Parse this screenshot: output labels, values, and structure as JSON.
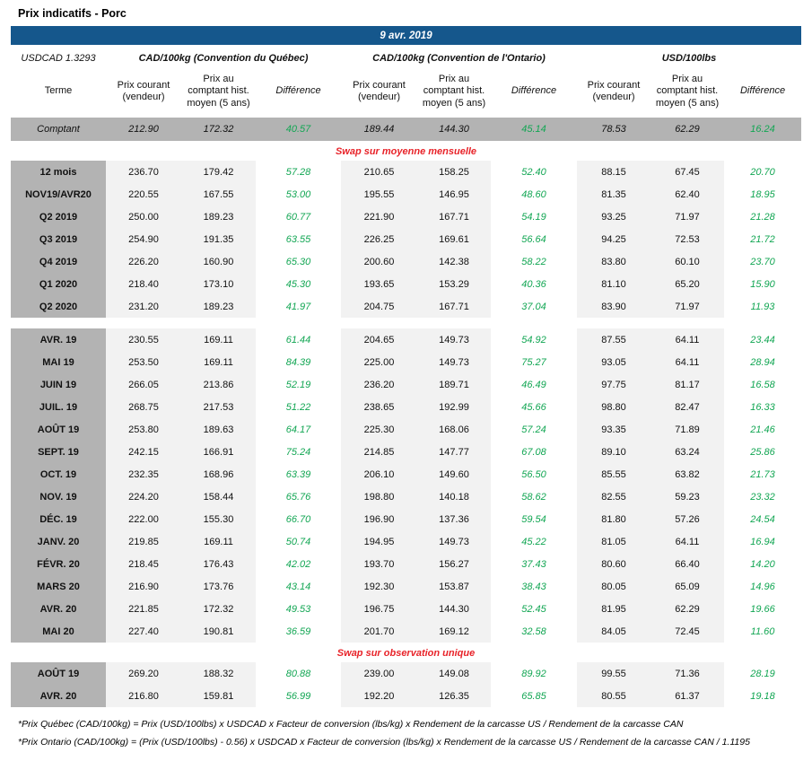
{
  "page_title": "Prix indicatifs - Porc",
  "date_banner": "9 avr. 2019",
  "colors": {
    "banner_blue": "#15578c",
    "row_gray": "#b3b3b3",
    "cell_light_gray": "#f2f2f2",
    "difference_green": "#12a653",
    "swap_header_red": "#e82329"
  },
  "table": {
    "usdcad_label": "USDCAD 1.3293",
    "groups": [
      {
        "label": "CAD/100kg (Convention du Québec)"
      },
      {
        "label": "CAD/100kg (Convention de l'Ontario)"
      },
      {
        "label": "USD/100lbs"
      }
    ],
    "col_headers": {
      "terme": "Terme",
      "prix_courant": "Prix courant (vendeur)",
      "prix_comptant": "Prix au comptant hist. moyen (5 ans)",
      "difference": "Différence"
    },
    "comptant_row": {
      "terme": "Comptant",
      "values": [
        "212.90",
        "172.32",
        "40.57",
        "189.44",
        "144.30",
        "45.14",
        "78.53",
        "62.29",
        "16.24"
      ]
    },
    "sections": [
      {
        "header": "Swap sur moyenne mensuelle",
        "blocks": [
          {
            "rows": [
              {
                "terme": "12 mois",
                "values": [
                  "236.70",
                  "179.42",
                  "57.28",
                  "210.65",
                  "158.25",
                  "52.40",
                  "88.15",
                  "67.45",
                  "20.70"
                ]
              },
              {
                "terme": "NOV19/AVR20",
                "values": [
                  "220.55",
                  "167.55",
                  "53.00",
                  "195.55",
                  "146.95",
                  "48.60",
                  "81.35",
                  "62.40",
                  "18.95"
                ]
              },
              {
                "terme": "Q2 2019",
                "values": [
                  "250.00",
                  "189.23",
                  "60.77",
                  "221.90",
                  "167.71",
                  "54.19",
                  "93.25",
                  "71.97",
                  "21.28"
                ]
              },
              {
                "terme": "Q3 2019",
                "values": [
                  "254.90",
                  "191.35",
                  "63.55",
                  "226.25",
                  "169.61",
                  "56.64",
                  "94.25",
                  "72.53",
                  "21.72"
                ]
              },
              {
                "terme": "Q4 2019",
                "values": [
                  "226.20",
                  "160.90",
                  "65.30",
                  "200.60",
                  "142.38",
                  "58.22",
                  "83.80",
                  "60.10",
                  "23.70"
                ]
              },
              {
                "terme": "Q1 2020",
                "values": [
                  "218.40",
                  "173.10",
                  "45.30",
                  "193.65",
                  "153.29",
                  "40.36",
                  "81.10",
                  "65.20",
                  "15.90"
                ]
              },
              {
                "terme": "Q2 2020",
                "values": [
                  "231.20",
                  "189.23",
                  "41.97",
                  "204.75",
                  "167.71",
                  "37.04",
                  "83.90",
                  "71.97",
                  "11.93"
                ]
              }
            ]
          },
          {
            "rows": [
              {
                "terme": "AVR. 19",
                "values": [
                  "230.55",
                  "169.11",
                  "61.44",
                  "204.65",
                  "149.73",
                  "54.92",
                  "87.55",
                  "64.11",
                  "23.44"
                ]
              },
              {
                "terme": "MAI 19",
                "values": [
                  "253.50",
                  "169.11",
                  "84.39",
                  "225.00",
                  "149.73",
                  "75.27",
                  "93.05",
                  "64.11",
                  "28.94"
                ]
              },
              {
                "terme": "JUIN 19",
                "values": [
                  "266.05",
                  "213.86",
                  "52.19",
                  "236.20",
                  "189.71",
                  "46.49",
                  "97.75",
                  "81.17",
                  "16.58"
                ]
              },
              {
                "terme": "JUIL. 19",
                "values": [
                  "268.75",
                  "217.53",
                  "51.22",
                  "238.65",
                  "192.99",
                  "45.66",
                  "98.80",
                  "82.47",
                  "16.33"
                ]
              },
              {
                "terme": "AOÛT 19",
                "values": [
                  "253.80",
                  "189.63",
                  "64.17",
                  "225.30",
                  "168.06",
                  "57.24",
                  "93.35",
                  "71.89",
                  "21.46"
                ]
              },
              {
                "terme": "SEPT. 19",
                "values": [
                  "242.15",
                  "166.91",
                  "75.24",
                  "214.85",
                  "147.77",
                  "67.08",
                  "89.10",
                  "63.24",
                  "25.86"
                ]
              },
              {
                "terme": "OCT. 19",
                "values": [
                  "232.35",
                  "168.96",
                  "63.39",
                  "206.10",
                  "149.60",
                  "56.50",
                  "85.55",
                  "63.82",
                  "21.73"
                ]
              },
              {
                "terme": "NOV. 19",
                "values": [
                  "224.20",
                  "158.44",
                  "65.76",
                  "198.80",
                  "140.18",
                  "58.62",
                  "82.55",
                  "59.23",
                  "23.32"
                ]
              },
              {
                "terme": "DÉC. 19",
                "values": [
                  "222.00",
                  "155.30",
                  "66.70",
                  "196.90",
                  "137.36",
                  "59.54",
                  "81.80",
                  "57.26",
                  "24.54"
                ]
              },
              {
                "terme": "JANV. 20",
                "values": [
                  "219.85",
                  "169.11",
                  "50.74",
                  "194.95",
                  "149.73",
                  "45.22",
                  "81.05",
                  "64.11",
                  "16.94"
                ]
              },
              {
                "terme": "FÉVR. 20",
                "values": [
                  "218.45",
                  "176.43",
                  "42.02",
                  "193.70",
                  "156.27",
                  "37.43",
                  "80.60",
                  "66.40",
                  "14.20"
                ]
              },
              {
                "terme": "MARS 20",
                "values": [
                  "216.90",
                  "173.76",
                  "43.14",
                  "192.30",
                  "153.87",
                  "38.43",
                  "80.05",
                  "65.09",
                  "14.96"
                ]
              },
              {
                "terme": "AVR. 20",
                "values": [
                  "221.85",
                  "172.32",
                  "49.53",
                  "196.75",
                  "144.30",
                  "52.45",
                  "81.95",
                  "62.29",
                  "19.66"
                ]
              },
              {
                "terme": "MAI 20",
                "values": [
                  "227.40",
                  "190.81",
                  "36.59",
                  "201.70",
                  "169.12",
                  "32.58",
                  "84.05",
                  "72.45",
                  "11.60"
                ]
              }
            ]
          }
        ]
      },
      {
        "header": "Swap sur observation unique",
        "blocks": [
          {
            "rows": [
              {
                "terme": "AOÛT 19",
                "values": [
                  "269.20",
                  "188.32",
                  "80.88",
                  "239.00",
                  "149.08",
                  "89.92",
                  "99.55",
                  "71.36",
                  "28.19"
                ]
              },
              {
                "terme": "AVR. 20",
                "values": [
                  "216.80",
                  "159.81",
                  "56.99",
                  "192.20",
                  "126.35",
                  "65.85",
                  "80.55",
                  "61.37",
                  "19.18"
                ]
              }
            ]
          }
        ]
      }
    ]
  },
  "footnotes": [
    "*Prix Québec (CAD/100kg) = Prix (USD/100lbs) x USDCAD x Facteur de conversion (lbs/kg) x Rendement de la carcasse US / Rendement de la carcasse CAN",
    "*Prix Ontario (CAD/100kg) = (Prix (USD/100lbs) - 0.56) x USDCAD x Facteur de conversion (lbs/kg) x Rendement de la carcasse US / Rendement de la carcasse CAN / 1.1195"
  ]
}
